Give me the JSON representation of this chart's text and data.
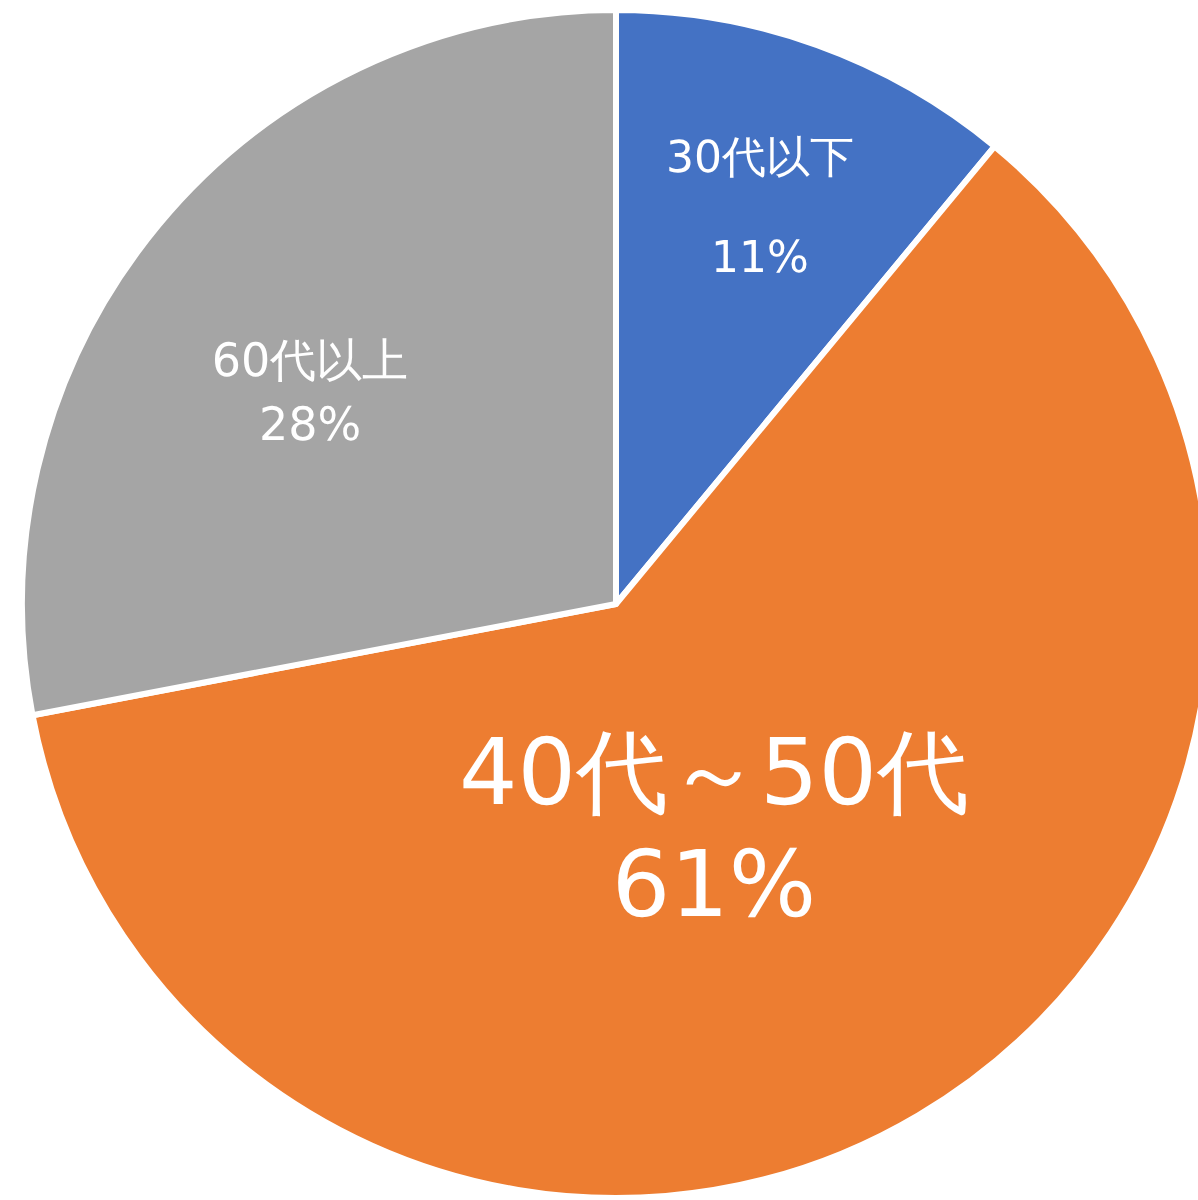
{
  "chart_data": {
    "type": "pie",
    "categories": [
      "30代以下",
      "40代～50代",
      "60代以上"
    ],
    "values": [
      11,
      61,
      28
    ],
    "colors": [
      "#4472c4",
      "#ed7d31",
      "#a5a5a5"
    ],
    "value_labels": [
      "11%",
      "61%",
      "28%"
    ],
    "legend": false
  }
}
